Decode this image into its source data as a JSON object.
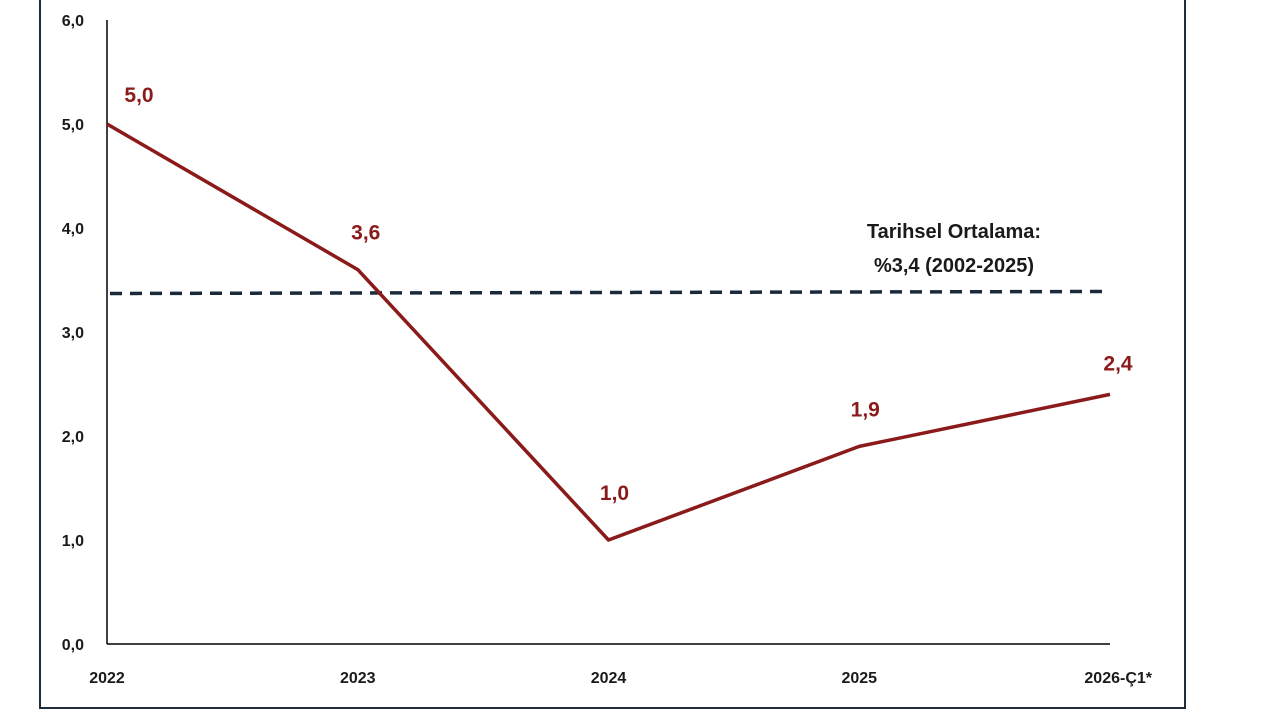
{
  "chart_data": {
    "type": "line",
    "categories": [
      "2022",
      "2023",
      "2024",
      "2025",
      "2026-Ç1*"
    ],
    "series": [
      {
        "values": [
          5.0,
          3.6,
          1.0,
          1.9,
          2.4
        ],
        "labels": [
          "5,0",
          "3,6",
          "1,0",
          "1,9",
          "2,4"
        ]
      }
    ],
    "ylim": [
      0,
      6
    ],
    "yticks": [
      {
        "value": 0,
        "label": "0,0"
      },
      {
        "value": 1,
        "label": "1,0"
      },
      {
        "value": 2,
        "label": "2,0"
      },
      {
        "value": 3,
        "label": "3,0"
      },
      {
        "value": 4,
        "label": "4,0"
      },
      {
        "value": 5,
        "label": "5,0"
      },
      {
        "value": 6,
        "label": "6,0"
      }
    ],
    "reference_line": {
      "value": 3.38,
      "style": "dashed",
      "annotation": [
        "Tarihsel Ortalama:",
        "%3,4 (2002-2025)"
      ]
    },
    "grid": false,
    "colors": {
      "series": "#8b1a1a",
      "reference": "#1b2a3a"
    }
  }
}
